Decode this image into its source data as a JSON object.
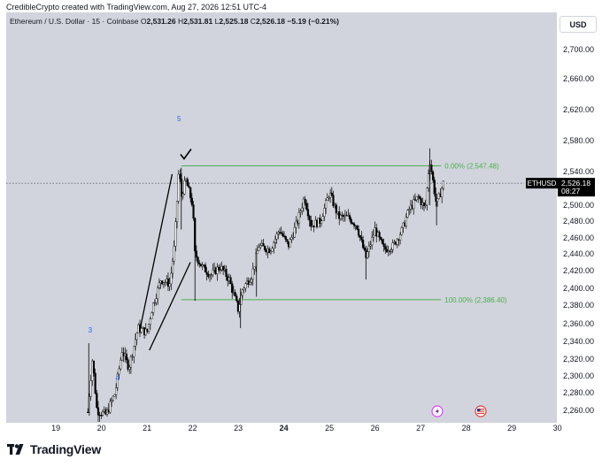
{
  "caption": "CredibleCrypto created with TradingView.com, Aug 27, 2026 12:51 UTC-4",
  "symbol": {
    "name": "Ethereum / U.S. Dollar · 15 · Coinbase",
    "o_label": "O",
    "o_value": "2,531.26",
    "h_label": "H",
    "h_value": "2,531.81",
    "l_label": "L",
    "l_value": "2,525.18",
    "c_label": "C",
    "c_value": "2,526.18",
    "change": "−5.19 (−0.21%)"
  },
  "currency_button": "USD",
  "brand": "TradingView",
  "colors": {
    "background": "#d1d4dc",
    "candle": "#000000",
    "fib_line": "#4caf50",
    "wave_label": "#2962ff"
  },
  "chart_data": {
    "type": "candlestick",
    "ylim": [
      2250,
      2720
    ],
    "y_ticks": [
      "2,260.00",
      "2,280.00",
      "2,300.00",
      "2,320.00",
      "2,340.00",
      "2,360.00",
      "2,380.00",
      "2,400.00",
      "2,420.00",
      "2,440.00",
      "2,460.00",
      "2,480.00",
      "2,500.00",
      "2,520.00",
      "2,540.00",
      "2,580.00",
      "2,620.00",
      "2,660.00",
      "2,700.00"
    ],
    "x_ticks": [
      "19",
      "20",
      "21",
      "22",
      "23",
      "24",
      "25",
      "26",
      "27",
      "28",
      "29",
      "30"
    ],
    "x_bold_tick": "24",
    "xlim": [
      18.55,
      29.95
    ],
    "price_badge": {
      "symbol": "ETHUSD",
      "price": "2,526.18",
      "countdown": "08:27",
      "value": 2526.18
    },
    "fib_levels": [
      {
        "label": "0.00% (2,547.48)",
        "value": 2547.48,
        "x_start": 21.75,
        "x_end": 27.45
      },
      {
        "label": "100.00% (2,386.40)",
        "value": 2386.4,
        "x_start": 21.75,
        "x_end": 27.45
      }
    ],
    "wave_labels": [
      {
        "label": "3",
        "x": 19.75,
        "y": 2350
      },
      {
        "label": "4",
        "x": 20.35,
        "y": 2295
      },
      {
        "label": "5",
        "x": 21.7,
        "y": 2605
      }
    ],
    "trendlines": [
      {
        "x1": 20.85,
        "y1": 2355,
        "x2": 21.55,
        "y2": 2537
      },
      {
        "x1": 21.05,
        "y1": 2330,
        "x2": 21.95,
        "y2": 2430
      }
    ],
    "checkmark": {
      "x": 21.85,
      "y": 2560
    },
    "path": [
      [
        19.7,
        2258
      ],
      [
        19.8,
        2320
      ],
      [
        19.9,
        2260
      ],
      [
        20.1,
        2255
      ],
      [
        20.3,
        2280
      ],
      [
        20.45,
        2330
      ],
      [
        20.6,
        2310
      ],
      [
        20.8,
        2355
      ],
      [
        21.0,
        2350
      ],
      [
        21.1,
        2375
      ],
      [
        21.3,
        2410
      ],
      [
        21.5,
        2405
      ],
      [
        21.6,
        2450
      ],
      [
        21.7,
        2545
      ],
      [
        21.75,
        2510
      ],
      [
        21.85,
        2530
      ],
      [
        22.0,
        2500
      ],
      [
        22.05,
        2440
      ],
      [
        22.2,
        2425
      ],
      [
        22.4,
        2415
      ],
      [
        22.6,
        2425
      ],
      [
        22.8,
        2410
      ],
      [
        23.0,
        2375
      ],
      [
        23.1,
        2400
      ],
      [
        23.3,
        2415
      ],
      [
        23.45,
        2450
      ],
      [
        23.7,
        2445
      ],
      [
        23.9,
        2470
      ],
      [
        24.1,
        2450
      ],
      [
        24.3,
        2480
      ],
      [
        24.45,
        2510
      ],
      [
        24.6,
        2475
      ],
      [
        24.8,
        2480
      ],
      [
        25.0,
        2515
      ],
      [
        25.2,
        2485
      ],
      [
        25.4,
        2485
      ],
      [
        25.6,
        2475
      ],
      [
        25.8,
        2435
      ],
      [
        26.0,
        2470
      ],
      [
        26.2,
        2445
      ],
      [
        26.4,
        2450
      ],
      [
        26.6,
        2470
      ],
      [
        26.75,
        2495
      ],
      [
        26.95,
        2510
      ],
      [
        27.1,
        2495
      ],
      [
        27.2,
        2555
      ],
      [
        27.35,
        2500
      ],
      [
        27.5,
        2526
      ]
    ]
  }
}
